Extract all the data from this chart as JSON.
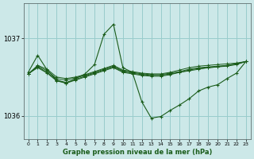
{
  "xlabel": "Graphe pression niveau de la mer (hPa)",
  "bg_color": "#cce8e8",
  "grid_color": "#99cccc",
  "line_color": "#1a5c1a",
  "xlim": [
    -0.5,
    23.5
  ],
  "ylim": [
    1035.7,
    1037.45
  ],
  "yticks": [
    1036,
    1037
  ],
  "xticks": [
    0,
    1,
    2,
    3,
    4,
    5,
    6,
    7,
    8,
    9,
    10,
    11,
    12,
    13,
    14,
    15,
    16,
    17,
    18,
    19,
    20,
    21,
    22,
    23
  ],
  "main_y": [
    1036.56,
    1036.78,
    1036.59,
    1036.46,
    1036.42,
    1036.48,
    1036.54,
    1036.66,
    1037.05,
    1037.18,
    1036.62,
    1036.56,
    1036.18,
    1035.97,
    1035.99,
    1036.07,
    1036.14,
    1036.22,
    1036.32,
    1036.37,
    1036.4,
    1036.48,
    1036.55,
    1036.7
  ],
  "flat_lines": [
    [
      1036.54,
      1036.65,
      1036.6,
      1036.5,
      1036.48,
      1036.5,
      1036.53,
      1036.57,
      1036.61,
      1036.65,
      1036.59,
      1036.57,
      1036.55,
      1036.54,
      1036.54,
      1036.56,
      1036.59,
      1036.62,
      1036.64,
      1036.65,
      1036.66,
      1036.67,
      1036.68,
      1036.7
    ],
    [
      1036.54,
      1036.64,
      1036.58,
      1036.48,
      1036.46,
      1036.49,
      1036.52,
      1036.56,
      1036.6,
      1036.64,
      1036.58,
      1036.56,
      1036.54,
      1036.53,
      1036.53,
      1036.55,
      1036.57,
      1036.6,
      1036.62,
      1036.63,
      1036.64,
      1036.65,
      1036.67,
      1036.7
    ],
    [
      1036.54,
      1036.63,
      1036.56,
      1036.46,
      1036.43,
      1036.47,
      1036.51,
      1036.55,
      1036.59,
      1036.63,
      1036.57,
      1036.55,
      1036.53,
      1036.52,
      1036.52,
      1036.54,
      1036.56,
      1036.59,
      1036.61,
      1036.62,
      1036.63,
      1036.65,
      1036.67,
      1036.7
    ],
    [
      1036.54,
      1036.62,
      1036.55,
      1036.45,
      1036.42,
      1036.46,
      1036.5,
      1036.54,
      1036.58,
      1036.62,
      1036.56,
      1036.54,
      1036.52,
      1036.51,
      1036.51,
      1036.53,
      1036.56,
      1036.58,
      1036.6,
      1036.62,
      1036.63,
      1036.64,
      1036.66,
      1036.7
    ]
  ]
}
